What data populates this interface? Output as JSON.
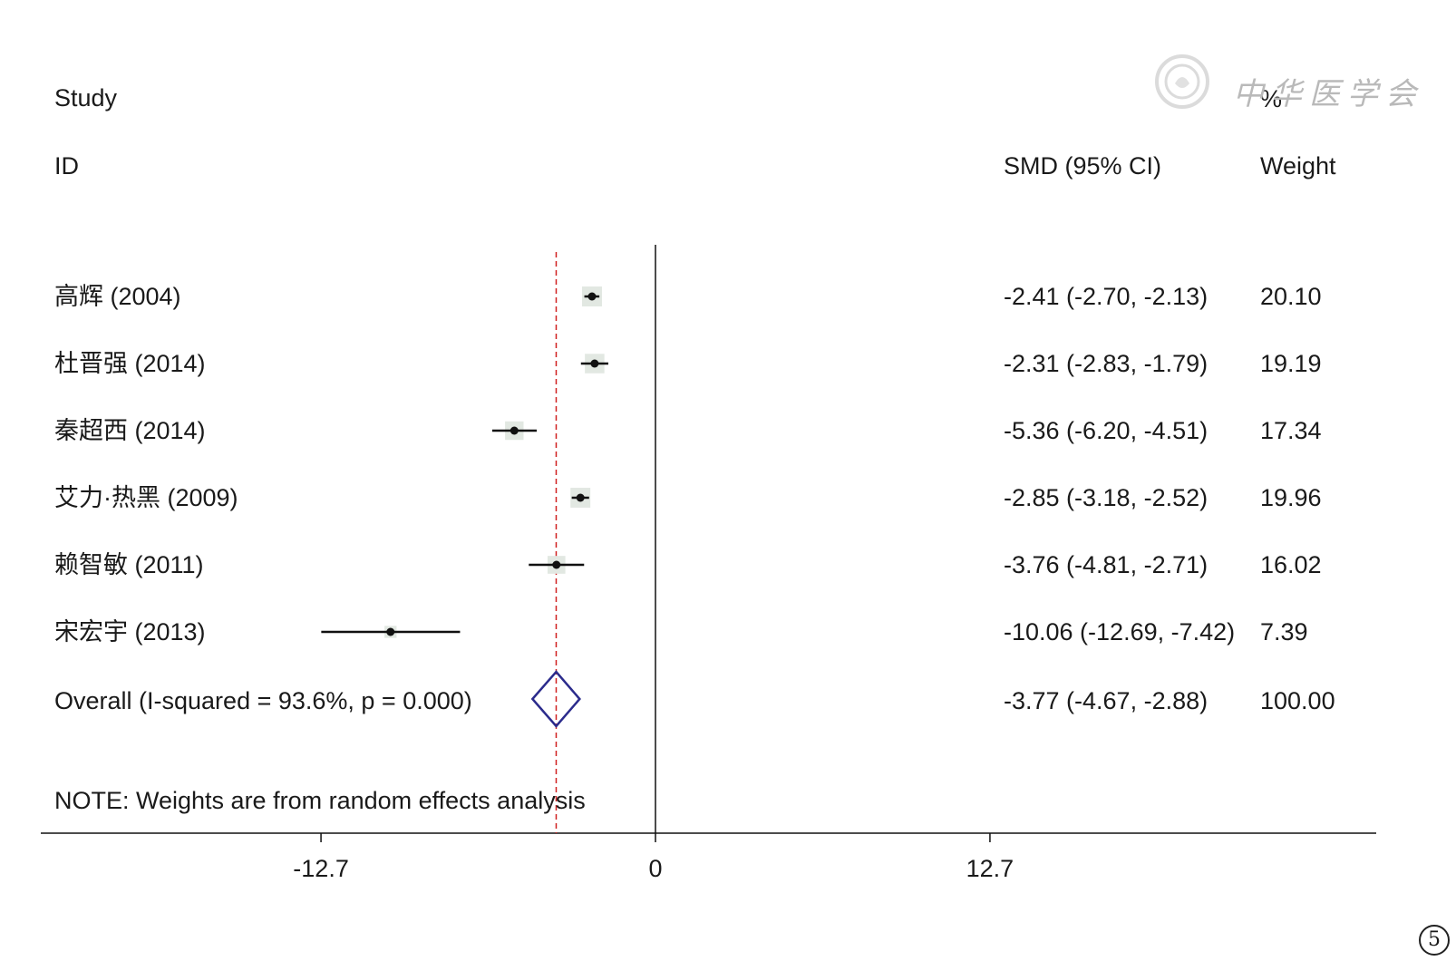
{
  "chart_data": {
    "type": "forest",
    "header": {
      "study": "Study",
      "id": "ID",
      "smd": "SMD (95% CI)",
      "pct": "%",
      "weight": "Weight"
    },
    "studies": [
      {
        "label": "高辉 (2004)",
        "smd": -2.41,
        "lo": -2.7,
        "hi": -2.13,
        "smd_text": "-2.41 (-2.70, -2.13)",
        "weight": 20.1,
        "weight_text": "20.10"
      },
      {
        "label": "杜晋强 (2014)",
        "smd": -2.31,
        "lo": -2.83,
        "hi": -1.79,
        "smd_text": "-2.31 (-2.83, -1.79)",
        "weight": 19.19,
        "weight_text": "19.19"
      },
      {
        "label": "秦超西 (2014)",
        "smd": -5.36,
        "lo": -6.2,
        "hi": -4.51,
        "smd_text": "-5.36 (-6.20, -4.51)",
        "weight": 17.34,
        "weight_text": "17.34"
      },
      {
        "label": "艾力·热黑 (2009)",
        "smd": -2.85,
        "lo": -3.18,
        "hi": -2.52,
        "smd_text": "-2.85 (-3.18, -2.52)",
        "weight": 19.96,
        "weight_text": "19.96"
      },
      {
        "label": "赖智敏 (2011)",
        "smd": -3.76,
        "lo": -4.81,
        "hi": -2.71,
        "smd_text": "-3.76 (-4.81, -2.71)",
        "weight": 16.02,
        "weight_text": "16.02"
      },
      {
        "label": "宋宏宇 (2013)",
        "smd": -10.06,
        "lo": -12.69,
        "hi": -7.42,
        "smd_text": "-10.06 (-12.69, -7.42)",
        "weight": 7.39,
        "weight_text": "7.39"
      }
    ],
    "overall": {
      "label": "Overall  (I-squared = 93.6%, p = 0.000)",
      "smd": -3.77,
      "lo": -4.67,
      "hi": -2.88,
      "smd_text": "-3.77 (-4.67, -2.88)",
      "weight_text": "100.00"
    },
    "note": "NOTE: Weights are from random effects analysis",
    "x_ticks": [
      {
        "value": -12.7,
        "label": "-12.7"
      },
      {
        "value": 0,
        "label": "0"
      },
      {
        "value": 12.7,
        "label": "12.7"
      }
    ],
    "xlim_visible": [
      -23.3,
      27.5
    ],
    "null_value": 0,
    "colors": {
      "ci_line": "#111111",
      "point": "#111111",
      "weight_box": "#e2e8e2",
      "overall_diamond": "#2b2b8c",
      "overall_line": "#d02020",
      "axis": "#111111"
    }
  },
  "watermark_text": "中华医学会",
  "figure_number": "5"
}
